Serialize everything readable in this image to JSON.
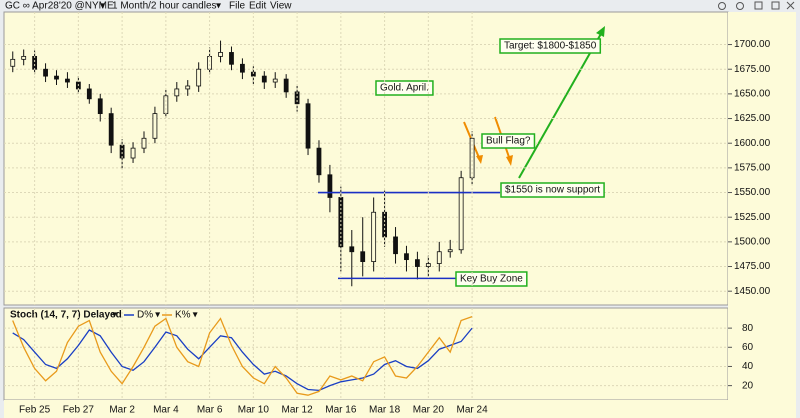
{
  "toolbar": {
    "symbol": "GC ∞ Apr28'20 @NYME",
    "period": "1 Month/2 hour candles",
    "menus": [
      "File",
      "Edit",
      "View"
    ]
  },
  "chart_data": [
    {
      "type": "candlestick",
      "x": [
        -1,
        -0.5,
        0,
        0.5,
        1,
        1.5,
        2,
        2.5,
        3,
        3.5,
        4,
        4.5,
        5,
        5.5,
        6,
        6.5,
        7,
        7.5,
        8,
        8.5,
        9,
        9.5,
        10,
        10.5,
        11,
        11.5,
        12,
        12.5,
        13,
        13.5,
        14,
        14.5,
        15,
        15.5,
        16,
        16.5,
        17,
        17.5,
        18,
        18.5,
        19,
        19.5,
        20
      ],
      "open": [
        1678,
        1685,
        1688,
        1675,
        1668,
        1665,
        1662,
        1655,
        1645,
        1630,
        1598,
        1585,
        1595,
        1605,
        1630,
        1648,
        1655,
        1658,
        1675,
        1688,
        1692,
        1680,
        1672,
        1668,
        1662,
        1665,
        1652,
        1640,
        1595,
        1568,
        1545,
        1495,
        1490,
        1480,
        1530,
        1505,
        1488,
        1482,
        1475,
        1478,
        1490,
        1492,
        1565
      ],
      "high": [
        1693,
        1695,
        1694,
        1681,
        1674,
        1672,
        1668,
        1660,
        1650,
        1636,
        1604,
        1601,
        1612,
        1637,
        1654,
        1662,
        1664,
        1682,
        1697,
        1704,
        1698,
        1686,
        1678,
        1673,
        1672,
        1670,
        1658,
        1645,
        1603,
        1578,
        1556,
        1512,
        1525,
        1545,
        1552,
        1515,
        1496,
        1490,
        1486,
        1500,
        1502,
        1572,
        1612
      ],
      "low": [
        1672,
        1679,
        1670,
        1662,
        1659,
        1656,
        1650,
        1640,
        1622,
        1590,
        1574,
        1580,
        1590,
        1600,
        1626,
        1642,
        1648,
        1652,
        1670,
        1682,
        1674,
        1665,
        1660,
        1655,
        1656,
        1646,
        1632,
        1588,
        1560,
        1530,
        1470,
        1455,
        1465,
        1470,
        1495,
        1478,
        1470,
        1462,
        1465,
        1470,
        1484,
        1488,
        1558
      ],
      "close": [
        1685,
        1688,
        1675,
        1668,
        1665,
        1662,
        1655,
        1645,
        1630,
        1598,
        1585,
        1595,
        1605,
        1630,
        1648,
        1655,
        1658,
        1675,
        1688,
        1692,
        1680,
        1672,
        1668,
        1662,
        1665,
        1652,
        1640,
        1595,
        1568,
        1545,
        1495,
        1490,
        1480,
        1530,
        1505,
        1488,
        1482,
        1475,
        1478,
        1490,
        1492,
        1565,
        1605
      ],
      "xlim": [
        -1.4,
        31.7
      ],
      "ylim": [
        1436,
        1733
      ],
      "yticks": [
        {
          "value": 1450,
          "label": "1450.00"
        },
        {
          "value": 1475,
          "label": "1475.00"
        },
        {
          "value": 1500,
          "label": "1500.00"
        },
        {
          "value": 1525,
          "label": "1525.00"
        },
        {
          "value": 1550,
          "label": "1550.00"
        },
        {
          "value": 1575,
          "label": "1575.00"
        },
        {
          "value": 1600,
          "label": "1600.00"
        },
        {
          "value": 1625,
          "label": "1625.00"
        },
        {
          "value": 1650,
          "label": "1650.00"
        },
        {
          "value": 1675,
          "label": "1675.00"
        },
        {
          "value": 1700,
          "label": "1700.00"
        }
      ],
      "hlines": [
        1550,
        1463
      ],
      "annotations": [
        "Gold. April.",
        "Bull Flag?",
        "$1550 is now support",
        "Key Buy Zone",
        "Target: $1800-$1850"
      ],
      "grid": true
    },
    {
      "type": "line",
      "title": "Stoch (14, 7, 7) Delayed",
      "x": [
        -1,
        -0.5,
        0,
        0.5,
        1,
        1.5,
        2,
        2.5,
        3,
        3.5,
        4,
        4.5,
        5,
        5.5,
        6,
        6.5,
        7,
        7.5,
        8,
        8.5,
        9,
        9.5,
        10,
        10.5,
        11,
        11.5,
        12,
        12.5,
        13,
        13.5,
        14,
        14.5,
        15,
        15.5,
        16,
        16.5,
        17,
        17.5,
        18,
        18.5,
        19,
        19.5,
        20
      ],
      "series": [
        {
          "name": "D%",
          "color": "#1a3fc4",
          "values": [
            75,
            68,
            55,
            42,
            38,
            48,
            62,
            78,
            72,
            55,
            40,
            36,
            45,
            60,
            76,
            72,
            58,
            48,
            60,
            72,
            70,
            55,
            42,
            32,
            35,
            30,
            22,
            16,
            15,
            20,
            24,
            26,
            28,
            32,
            42,
            46,
            40,
            38,
            46,
            58,
            62,
            66,
            80
          ]
        },
        {
          "name": "K%",
          "color": "#e89a1c",
          "values": [
            88,
            60,
            38,
            25,
            35,
            65,
            82,
            88,
            55,
            35,
            22,
            40,
            60,
            82,
            90,
            60,
            45,
            40,
            75,
            90,
            62,
            40,
            28,
            22,
            40,
            28,
            12,
            10,
            14,
            30,
            26,
            30,
            25,
            45,
            50,
            30,
            28,
            40,
            55,
            70,
            55,
            88,
            92
          ]
        }
      ],
      "xlim": [
        -1.4,
        31.7
      ],
      "ylim": [
        5,
        101
      ],
      "yticks": [
        20,
        40,
        60,
        80
      ],
      "xticks": [
        {
          "value": 0,
          "label": "Feb 25"
        },
        {
          "value": 2,
          "label": "Feb 27"
        },
        {
          "value": 4,
          "label": "Mar 2"
        },
        {
          "value": 6,
          "label": "Mar 4"
        },
        {
          "value": 8,
          "label": "Mar 6"
        },
        {
          "value": 10,
          "label": "Mar 10"
        },
        {
          "value": 12,
          "label": "Mar 12"
        },
        {
          "value": 14,
          "label": "Mar 16"
        },
        {
          "value": 16,
          "label": "Mar 18"
        },
        {
          "value": 18,
          "label": "Mar 20"
        },
        {
          "value": 20,
          "label": "Mar 24"
        }
      ],
      "grid": true
    }
  ]
}
